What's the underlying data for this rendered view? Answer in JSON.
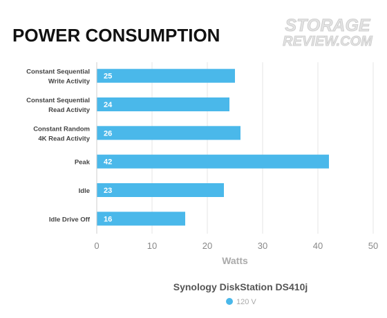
{
  "watermark": {
    "line1": "STORAGE",
    "line2": "REVIEW.COM"
  },
  "chart_data": {
    "type": "bar",
    "orientation": "horizontal",
    "title": "POWER CONSUMPTION",
    "subtitle": "Synology DiskStation DS410j",
    "xlabel": "Watts",
    "ylabel": "",
    "xlim": [
      0,
      50
    ],
    "xticks": [
      0,
      10,
      20,
      30,
      40,
      50
    ],
    "grid": true,
    "legend": "bottom-center",
    "categories": [
      [
        "Constant Sequential",
        "Write Activity"
      ],
      [
        "Constant Sequential",
        "Read Activity"
      ],
      [
        "Constant Random",
        "4K Read Activity"
      ],
      [
        "Peak"
      ],
      [
        "Idle"
      ],
      [
        "Idle Drive Off"
      ]
    ],
    "series": [
      {
        "name": "120 V",
        "color": "#4ab8ea",
        "values": [
          25,
          24,
          26,
          42,
          23,
          16
        ]
      }
    ]
  }
}
